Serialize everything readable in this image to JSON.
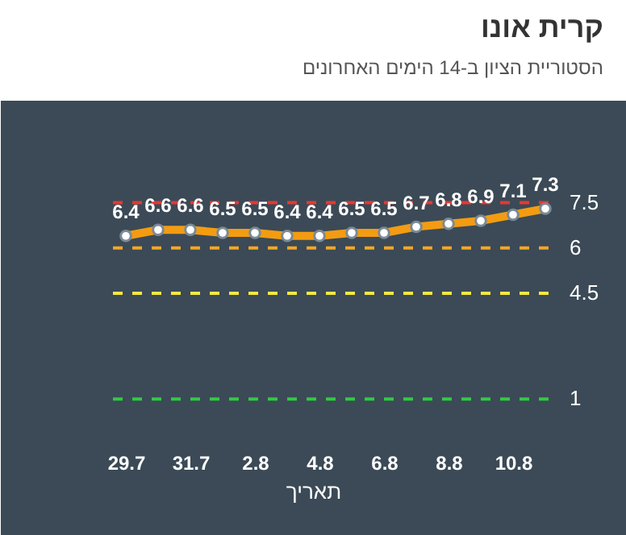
{
  "chart_data": {
    "type": "line",
    "title": "קרית אונו",
    "subtitle": "הסטוריית הציון ב-14 הימים האחרונים",
    "xlabel": "תאריך",
    "categories": [
      "29.7",
      null,
      "31.7",
      null,
      "2.8",
      null,
      "4.8",
      null,
      "6.8",
      null,
      "8.8",
      null,
      "10.8",
      null
    ],
    "series": [
      {
        "color": "#f39c12",
        "values": [
          6.4,
          6.6,
          6.6,
          6.5,
          6.5,
          6.4,
          6.4,
          6.5,
          6.5,
          6.7,
          6.8,
          6.9,
          7.1,
          7.3
        ]
      }
    ],
    "ylim": [
      -3.5,
      10.9
    ],
    "tick_labels": "x",
    "grid": false,
    "marker": "circle",
    "line_style": "solid",
    "data_labels": true,
    "ref_lines": [
      {
        "axis": "y",
        "value": 7.5,
        "label": "7.5",
        "color": "#e53935",
        "line_style": "dashed"
      },
      {
        "axis": "y",
        "value": 6,
        "label": "6",
        "color": "#f5a623",
        "line_style": "dashed"
      },
      {
        "axis": "y",
        "value": 4.5,
        "label": "4.5",
        "color": "#f4e842",
        "line_style": "dashed"
      },
      {
        "axis": "y",
        "value": 1,
        "label": "1",
        "color": "#2ecc40",
        "line_style": "dashed"
      }
    ]
  }
}
